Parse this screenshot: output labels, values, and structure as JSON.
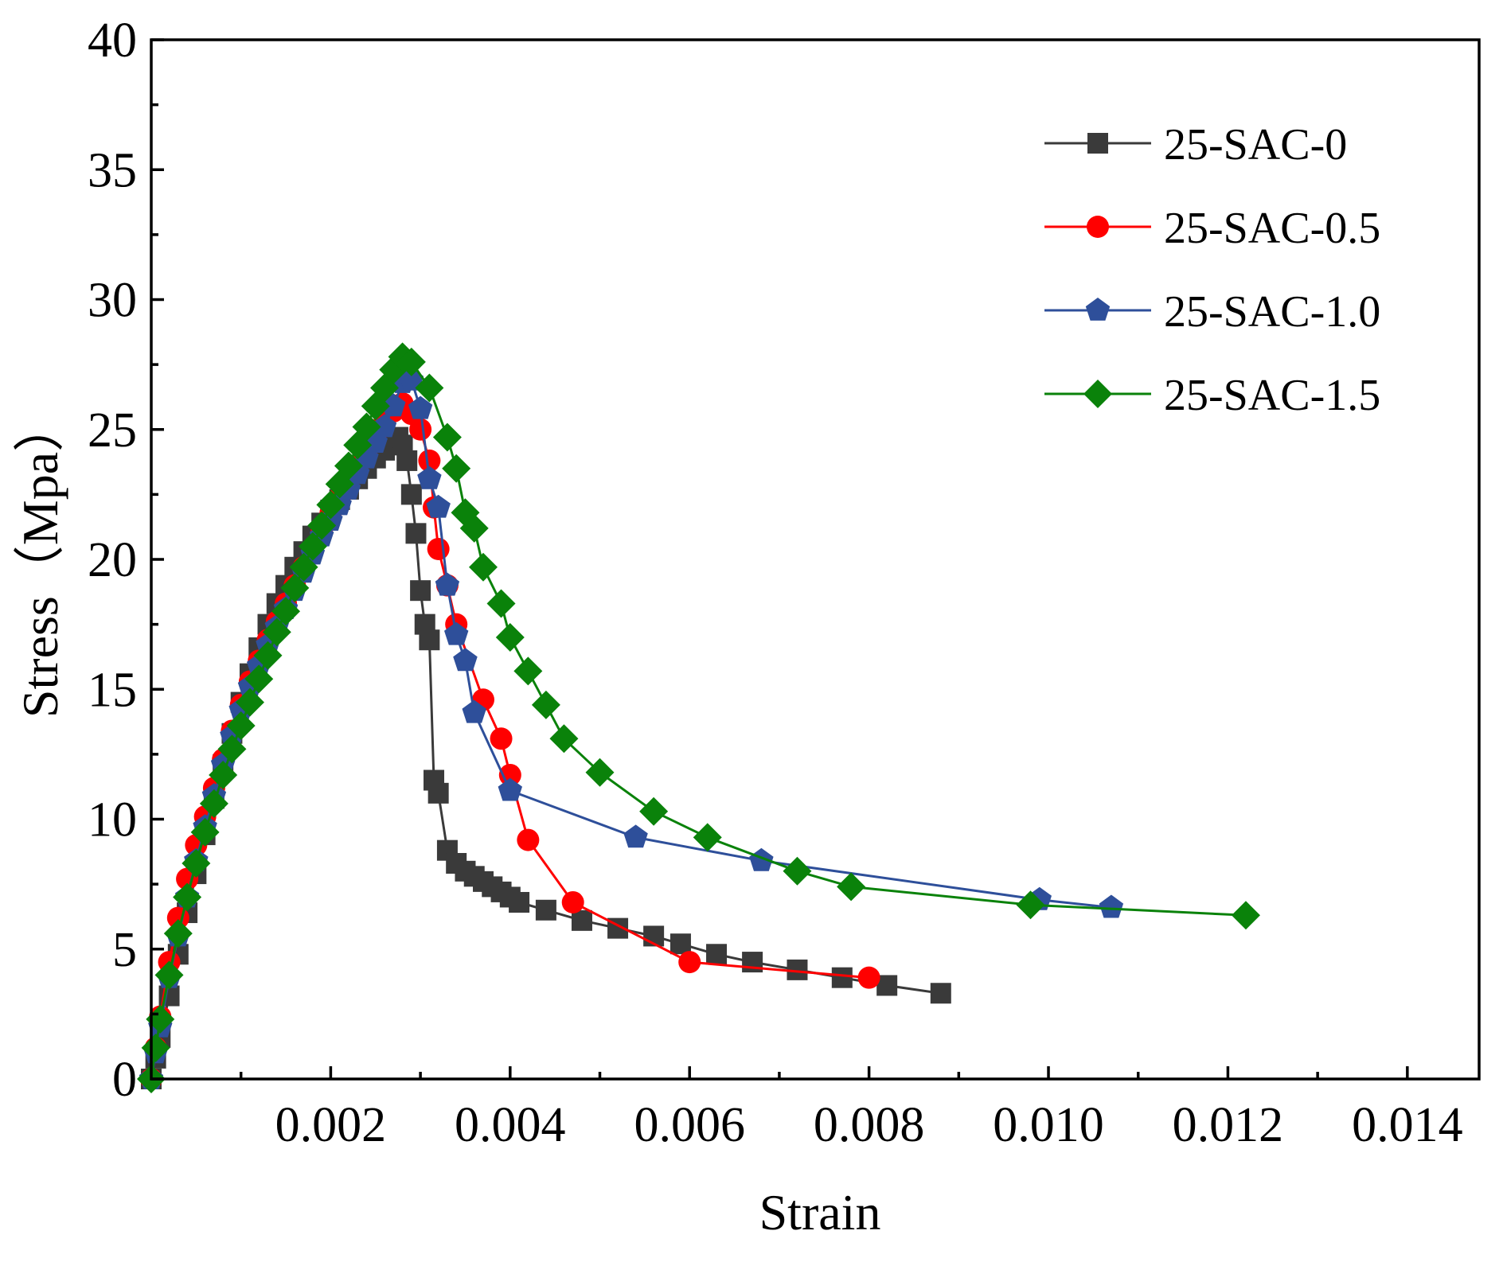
{
  "chart_data": {
    "type": "line",
    "title": "",
    "xlabel": "Strain",
    "ylabel": "Stress（Mpa）",
    "xlim": [
      0,
      0.0148
    ],
    "ylim": [
      0,
      40
    ],
    "xticks": [
      0.002,
      0.004,
      0.006,
      0.008,
      0.01,
      0.012,
      0.014
    ],
    "xtick_labels": [
      "0.002",
      "0.004",
      "0.006",
      "0.008",
      "0.010",
      "0.012",
      "0.014"
    ],
    "yticks": [
      0,
      5,
      10,
      15,
      20,
      25,
      30,
      35,
      40
    ],
    "ytick_labels": [
      "0",
      "5",
      "10",
      "15",
      "20",
      "25",
      "30",
      "35",
      "40"
    ],
    "grid": false,
    "legend_position": "top-right",
    "series": [
      {
        "name": "25-SAC-0",
        "color": "#3a3a3a",
        "marker": "square",
        "x": [
          0.0,
          5e-05,
          0.0001,
          0.0002,
          0.0003,
          0.0004,
          0.0005,
          0.0006,
          0.0007,
          0.0008,
          0.0009,
          0.001,
          0.0011,
          0.0012,
          0.0013,
          0.0014,
          0.0015,
          0.0016,
          0.0017,
          0.0018,
          0.0019,
          0.002,
          0.0021,
          0.0022,
          0.0023,
          0.0024,
          0.0025,
          0.0026,
          0.0027,
          0.00275,
          0.0028,
          0.00285,
          0.0029,
          0.00295,
          0.003,
          0.00305,
          0.0031,
          0.00315,
          0.0032,
          0.0033,
          0.0034,
          0.0035,
          0.0036,
          0.0037,
          0.0038,
          0.0039,
          0.004,
          0.0041,
          0.0044,
          0.0048,
          0.0052,
          0.0056,
          0.0059,
          0.0063,
          0.0067,
          0.0072,
          0.0077,
          0.0082,
          0.0088
        ],
        "y": [
          0.0,
          0.8,
          1.6,
          3.2,
          4.8,
          6.4,
          7.9,
          9.4,
          10.8,
          12.1,
          13.3,
          14.5,
          15.6,
          16.6,
          17.5,
          18.3,
          19.0,
          19.7,
          20.3,
          20.9,
          21.4,
          21.9,
          22.3,
          22.7,
          23.1,
          23.5,
          23.9,
          24.2,
          24.6,
          24.7,
          24.4,
          23.8,
          22.5,
          21.0,
          18.8,
          17.5,
          16.9,
          11.5,
          11.0,
          8.8,
          8.3,
          8.0,
          7.8,
          7.6,
          7.4,
          7.2,
          7.0,
          6.8,
          6.5,
          6.1,
          5.8,
          5.5,
          5.2,
          4.8,
          4.5,
          4.2,
          3.9,
          3.6,
          3.3
        ]
      },
      {
        "name": "25-SAC-0.5",
        "color": "#ff0000",
        "marker": "circle",
        "x": [
          0.0,
          5e-05,
          0.0001,
          0.0002,
          0.0003,
          0.0004,
          0.0005,
          0.0006,
          0.0007,
          0.0008,
          0.0009,
          0.001,
          0.0011,
          0.0012,
          0.0013,
          0.0014,
          0.0015,
          0.0016,
          0.0017,
          0.0018,
          0.0019,
          0.002,
          0.0021,
          0.0022,
          0.0023,
          0.0024,
          0.0025,
          0.0026,
          0.0027,
          0.0028,
          0.0029,
          0.003,
          0.0031,
          0.00315,
          0.0032,
          0.0033,
          0.0034,
          0.0037,
          0.0039,
          0.004,
          0.0042,
          0.0047,
          0.006,
          0.008
        ],
        "y": [
          0.0,
          1.2,
          2.4,
          4.5,
          6.2,
          7.7,
          9.0,
          10.1,
          11.2,
          12.3,
          13.4,
          14.4,
          15.3,
          16.1,
          16.9,
          17.6,
          18.3,
          19.0,
          19.7,
          20.4,
          21.1,
          21.8,
          22.4,
          23.0,
          23.6,
          24.2,
          24.8,
          25.3,
          25.7,
          26.0,
          25.6,
          25.0,
          23.8,
          22.0,
          20.4,
          19.0,
          17.5,
          14.6,
          13.1,
          11.7,
          9.2,
          6.8,
          4.5,
          3.9
        ]
      },
      {
        "name": "25-SAC-1.0",
        "color": "#2e4f9a",
        "marker": "pentagon",
        "x": [
          0.0,
          5e-05,
          0.0001,
          0.0002,
          0.0003,
          0.0004,
          0.0005,
          0.0006,
          0.0007,
          0.0008,
          0.0009,
          0.001,
          0.0011,
          0.0012,
          0.0013,
          0.0014,
          0.0015,
          0.0016,
          0.0017,
          0.0018,
          0.0019,
          0.002,
          0.0021,
          0.0022,
          0.0023,
          0.0024,
          0.0025,
          0.0026,
          0.0027,
          0.0028,
          0.0029,
          0.003,
          0.0031,
          0.0032,
          0.0033,
          0.0034,
          0.0035,
          0.0036,
          0.004,
          0.0054,
          0.0068,
          0.0099,
          0.0107
        ],
        "y": [
          0.0,
          1.0,
          2.0,
          3.9,
          5.5,
          7.0,
          8.4,
          9.7,
          10.9,
          12.1,
          13.2,
          14.2,
          15.1,
          15.9,
          16.7,
          17.4,
          18.1,
          18.8,
          19.5,
          20.2,
          20.9,
          21.5,
          22.1,
          22.7,
          23.3,
          23.9,
          24.5,
          25.1,
          25.9,
          26.8,
          26.9,
          25.8,
          23.1,
          22.0,
          19.0,
          17.1,
          16.1,
          14.1,
          11.1,
          9.3,
          8.4,
          6.9,
          6.6
        ]
      },
      {
        "name": "25-SAC-1.5",
        "color": "#0a820a",
        "marker": "diamond",
        "x": [
          0.0,
          5e-05,
          0.0001,
          0.0002,
          0.0003,
          0.0004,
          0.0005,
          0.0006,
          0.0007,
          0.0008,
          0.0009,
          0.001,
          0.0011,
          0.0012,
          0.0013,
          0.0014,
          0.0015,
          0.0016,
          0.0017,
          0.0018,
          0.0019,
          0.002,
          0.0021,
          0.0022,
          0.0023,
          0.0024,
          0.0025,
          0.0026,
          0.0027,
          0.0028,
          0.0029,
          0.0031,
          0.0033,
          0.0034,
          0.0035,
          0.0036,
          0.0037,
          0.0039,
          0.004,
          0.0042,
          0.0044,
          0.0046,
          0.005,
          0.0056,
          0.0062,
          0.0072,
          0.0078,
          0.0098,
          0.0122
        ],
        "y": [
          0.0,
          1.2,
          2.3,
          4.0,
          5.6,
          7.0,
          8.3,
          9.5,
          10.6,
          11.7,
          12.7,
          13.6,
          14.5,
          15.4,
          16.3,
          17.2,
          18.0,
          18.9,
          19.7,
          20.5,
          21.3,
          22.1,
          22.9,
          23.6,
          24.4,
          25.1,
          25.9,
          26.6,
          27.3,
          27.8,
          27.6,
          26.6,
          24.7,
          23.5,
          21.8,
          21.2,
          19.7,
          18.3,
          17.0,
          15.7,
          14.4,
          13.1,
          11.8,
          10.3,
          9.3,
          8.0,
          7.4,
          6.7,
          6.3
        ]
      }
    ]
  }
}
